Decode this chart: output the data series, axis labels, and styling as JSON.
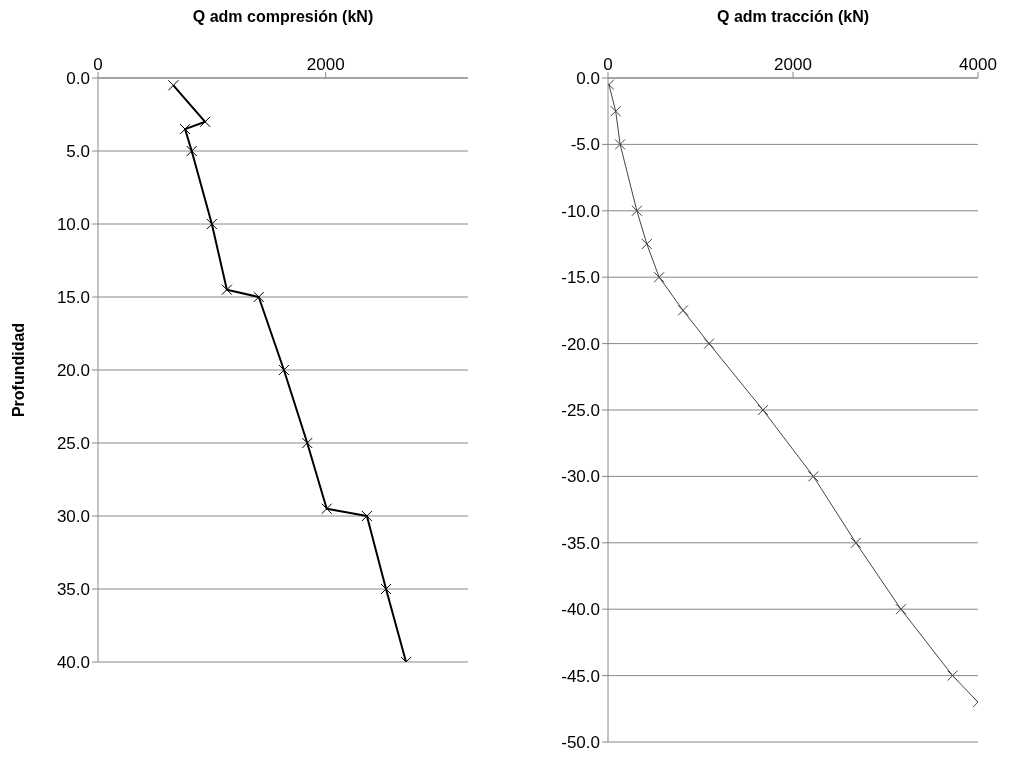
{
  "chart_data": [
    {
      "type": "line",
      "xlabel": "Q adm compresión (kN)",
      "ylabel": "Profundidad",
      "xlim": [
        0,
        3250
      ],
      "xticks": [
        0,
        2000
      ],
      "ylim": [
        40,
        0
      ],
      "yticks": [
        {
          "value": 0,
          "label": "0.0"
        },
        {
          "value": 5,
          "label": "5.0"
        },
        {
          "value": 10,
          "label": "10.0"
        },
        {
          "value": 15,
          "label": "15.0"
        },
        {
          "value": 20,
          "label": "20.0"
        },
        {
          "value": 25,
          "label": "25.0"
        },
        {
          "value": 30,
          "label": "30.0"
        },
        {
          "value": 35,
          "label": "35.0"
        },
        {
          "value": 40,
          "label": "40.0"
        }
      ],
      "grid": "y",
      "marker": "cross",
      "line_style": "solid",
      "series": [
        {
          "color": "#000000",
          "x": [
            662,
            941,
            765,
            823,
            1000,
            1132,
            1412,
            1633,
            1838,
            2009,
            2362,
            2530,
            2706
          ],
          "values": [
            0.5,
            3.0,
            3.5,
            5.0,
            10.0,
            14.5,
            15.0,
            20.0,
            25.0,
            29.5,
            30.0,
            35.0,
            40.0
          ]
        }
      ]
    },
    {
      "type": "line",
      "xlabel": "Q adm tracción (kN)",
      "xlim": [
        0,
        4000
      ],
      "xticks": [
        0,
        2000,
        4000
      ],
      "ylim": [
        -50,
        0
      ],
      "yticks": [
        {
          "value": 0,
          "label": "0.0"
        },
        {
          "value": -5,
          "label": "-5.0"
        },
        {
          "value": -10,
          "label": "-10.0"
        },
        {
          "value": -15,
          "label": "-15.0"
        },
        {
          "value": -20,
          "label": "-20.0"
        },
        {
          "value": -25,
          "label": "-25.0"
        },
        {
          "value": -30,
          "label": "-30.0"
        },
        {
          "value": -35,
          "label": "-35.0"
        },
        {
          "value": -40,
          "label": "-40.0"
        },
        {
          "value": -45,
          "label": "-45.0"
        },
        {
          "value": -50,
          "label": "-50.0"
        }
      ],
      "grid": "y",
      "marker": "cross",
      "line_style": "solid",
      "series": [
        {
          "color": "#444444",
          "x": [
            10,
            83,
            131,
            312,
            420,
            553,
            811,
            1093,
            1675,
            2220,
            2680,
            3167,
            3725,
            4000
          ],
          "values": [
            -0.5,
            -2.5,
            -5.0,
            -10.0,
            -12.5,
            -15.0,
            -17.5,
            -20.0,
            -25.0,
            -30.0,
            -35.0,
            -40.0,
            -45.0,
            -47.0
          ]
        }
      ]
    }
  ]
}
